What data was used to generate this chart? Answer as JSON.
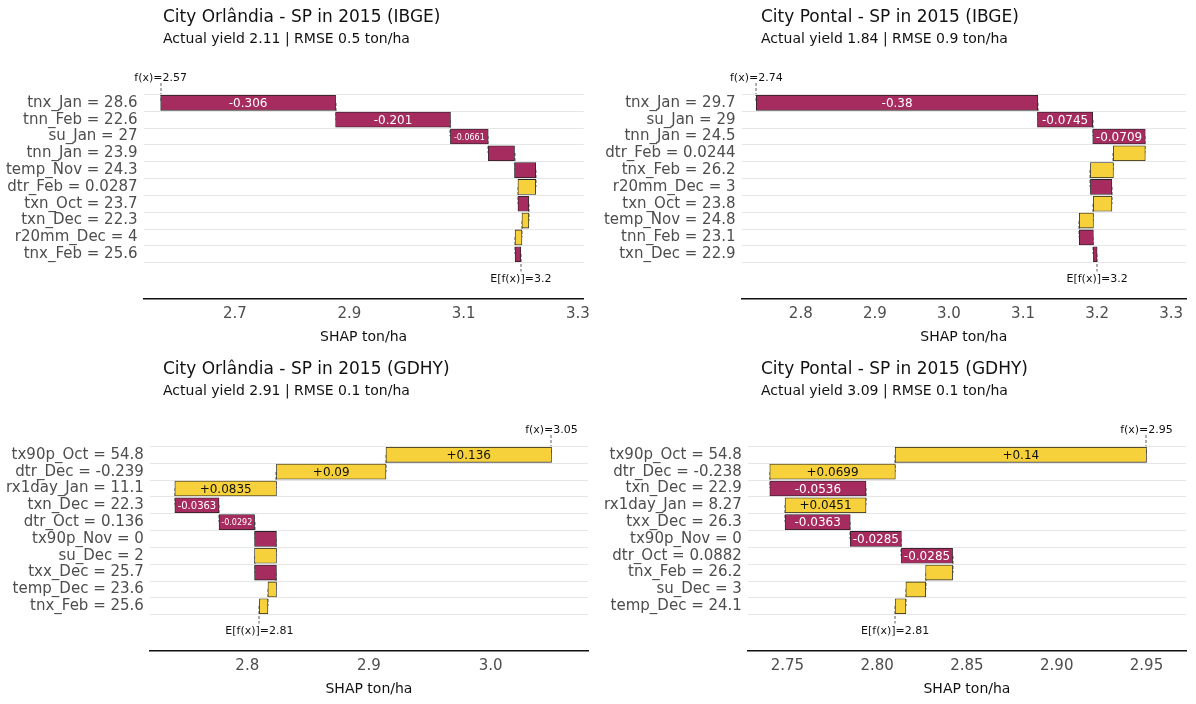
{
  "chart_data": [
    {
      "type": "bar",
      "orientation": "horizontal",
      "title": "City Orlândia - SP in 2015 (IBGE)",
      "subtitle": "Actual yield 2.11 | RMSE 0.5 ton/ha",
      "xlabel": "SHAP ton/ha",
      "categories": [
        "tnx_Jan = 28.6",
        "tnn_Feb = 22.6",
        "su_Jan = 27",
        "tnn_Jan = 23.9",
        "temp_Nov = 24.3",
        "dtr_Feb = 0.0287",
        "txn_Oct = 23.7",
        "txn_Dec = 22.3",
        "r20mm_Dec = 4",
        "tnx_Feb = 25.6"
      ],
      "values": [
        -0.306,
        -0.201,
        -0.0661,
        -0.046,
        -0.037,
        0.031,
        -0.019,
        0.012,
        0.012,
        -0.01
      ],
      "base": [
        2.876,
        3.077,
        3.143,
        3.189,
        3.226,
        3.195,
        3.214,
        3.202,
        3.19,
        3.2
      ],
      "value_labels": [
        "-0.306",
        "-0.201",
        "-0.0661",
        null,
        null,
        null,
        null,
        null,
        null,
        null
      ],
      "colors": [
        "#a62b5e",
        "#a62b5e",
        "#a62b5e",
        "#a62b5e",
        "#a62b5e",
        "#f6d13c",
        "#a62b5e",
        "#f6d13c",
        "#f6d13c",
        "#a62b5e"
      ],
      "xlim": [
        2.54,
        3.31
      ],
      "xticks": [
        2.7,
        2.9,
        3.1,
        3.3
      ],
      "grid": "y",
      "annotations": [
        "f(x)=2.57",
        "E[f(x)]=3.2"
      ]
    },
    {
      "type": "bar",
      "orientation": "horizontal",
      "title": "City Pontal - SP in 2015 (IBGE)",
      "subtitle": "Actual yield 1.84 | RMSE 0.9 ton/ha",
      "xlabel": "SHAP ton/ha",
      "categories": [
        "tnx_Jan = 29.7",
        "su_Jan = 29",
        "tnn_Jan = 24.5",
        "dtr_Feb = 0.0244",
        "tnx_Feb = 26.2",
        "r20mm_Dec = 3",
        "txn_Oct = 23.8",
        "temp_Nov = 24.8",
        "tnn_Feb = 23.1",
        "txn_Dec = 22.9"
      ],
      "values": [
        -0.38,
        -0.0745,
        -0.0709,
        0.043,
        0.031,
        -0.029,
        0.025,
        0.019,
        -0.019,
        -0.005
      ],
      "base": [
        3.12,
        3.194,
        3.265,
        3.222,
        3.191,
        3.22,
        3.195,
        3.176,
        3.195,
        3.2
      ],
      "value_labels": [
        "-0.38",
        "-0.0745",
        "-0.0709",
        null,
        null,
        null,
        null,
        null,
        null,
        null
      ],
      "colors": [
        "#a62b5e",
        "#a62b5e",
        "#a62b5e",
        "#f6d13c",
        "#f6d13c",
        "#a62b5e",
        "#f6d13c",
        "#f6d13c",
        "#a62b5e",
        "#a62b5e"
      ],
      "xlim": [
        2.72,
        3.32
      ],
      "xticks": [
        {
          "value": 2.8,
          "label": "2.8"
        },
        {
          "value": 2.9,
          "label": "2.9"
        },
        {
          "value": 3,
          "label": "3.0"
        },
        {
          "value": 3.1,
          "label": "3.1"
        },
        {
          "value": 3.2,
          "label": "3.2"
        },
        {
          "value": 3.3,
          "label": "3.3"
        }
      ],
      "grid": "y",
      "annotations": [
        "f(x)=2.74",
        "E[f(x)]=3.2"
      ]
    },
    {
      "type": "bar",
      "orientation": "horizontal",
      "title": "City Orlândia - SP in 2015 (GDHY)",
      "subtitle": "Actual yield 2.91 | RMSE 0.1 ton/ha",
      "xlabel": "SHAP ton/ha",
      "categories": [
        "tx90p_Oct = 54.8",
        "dtr_Dec = -0.239",
        "rx1day_Jan = 11.1",
        "txn_Dec = 22.3",
        "dtr_Oct = 0.136",
        "tx90p_Nov = 0",
        "su_Dec = 2",
        "txx_Dec = 25.7",
        "temp_Dec = 23.6",
        "tnx_Feb = 25.6"
      ],
      "values": [
        0.136,
        0.09,
        0.0835,
        -0.0363,
        -0.0292,
        -0.018,
        0.018,
        -0.018,
        0.007,
        0.007
      ],
      "base": [
        2.914,
        2.824,
        2.7405,
        2.7768,
        2.806,
        2.824,
        2.806,
        2.824,
        2.817,
        2.81
      ],
      "value_labels": [
        "+0.136",
        "+0.09",
        "+0.0835",
        "-0.0363",
        "-0.0292",
        null,
        null,
        null,
        null,
        null
      ],
      "colors": [
        "#f6d13c",
        "#f6d13c",
        "#f6d13c",
        "#a62b5e",
        "#a62b5e",
        "#a62b5e",
        "#f6d13c",
        "#a62b5e",
        "#f6d13c",
        "#f6d13c"
      ],
      "xlim": [
        2.72,
        3.08
      ],
      "xticks": [
        {
          "value": 2.8,
          "label": "2.8"
        },
        {
          "value": 2.9,
          "label": "2.9"
        },
        {
          "value": 3,
          "label": "3.0"
        }
      ],
      "grid": "y",
      "annotations": [
        "f(x)=3.05",
        "E[f(x)]=2.81"
      ]
    },
    {
      "type": "bar",
      "orientation": "horizontal",
      "title": "City Pontal - SP in 2015 (GDHY)",
      "subtitle": "Actual yield 3.09 | RMSE 0.1 ton/ha",
      "xlabel": "SHAP ton/ha",
      "categories": [
        "tx90p_Oct = 54.8",
        "dtr_Dec = -0.238",
        "txn_Dec = 22.9",
        "rx1day_Jan = 8.27",
        "txx_Dec = 26.3",
        "tx90p_Nov = 0",
        "dtr_Oct = 0.0882",
        "tnx_Feb = 26.2",
        "su_Dec = 3",
        "temp_Dec = 24.1"
      ],
      "values": [
        0.14,
        0.0699,
        -0.0536,
        0.0451,
        -0.0363,
        -0.0285,
        -0.0285,
        0.015,
        0.011,
        0.006
      ],
      "base": [
        2.81,
        2.7402,
        2.7938,
        2.7487,
        2.785,
        2.8135,
        2.842,
        2.827,
        2.816,
        2.81
      ],
      "value_labels": [
        "+0.14",
        "+0.0699",
        "-0.0536",
        "+0.0451",
        "-0.0363",
        "-0.0285",
        "-0.0285",
        null,
        null,
        null
      ],
      "colors": [
        "#f6d13c",
        "#f6d13c",
        "#a62b5e",
        "#f6d13c",
        "#a62b5e",
        "#a62b5e",
        "#a62b5e",
        "#f6d13c",
        "#f6d13c",
        "#f6d13c"
      ],
      "xlim": [
        2.728,
        2.972
      ],
      "xticks": [
        2.75,
        {
          "value": 2.8,
          "label": "2.80"
        },
        2.85,
        {
          "value": 2.9,
          "label": "2.90"
        },
        2.95
      ],
      "grid": "y",
      "annotations": [
        "f(x)=2.95",
        "E[f(x)]=2.81"
      ]
    }
  ]
}
